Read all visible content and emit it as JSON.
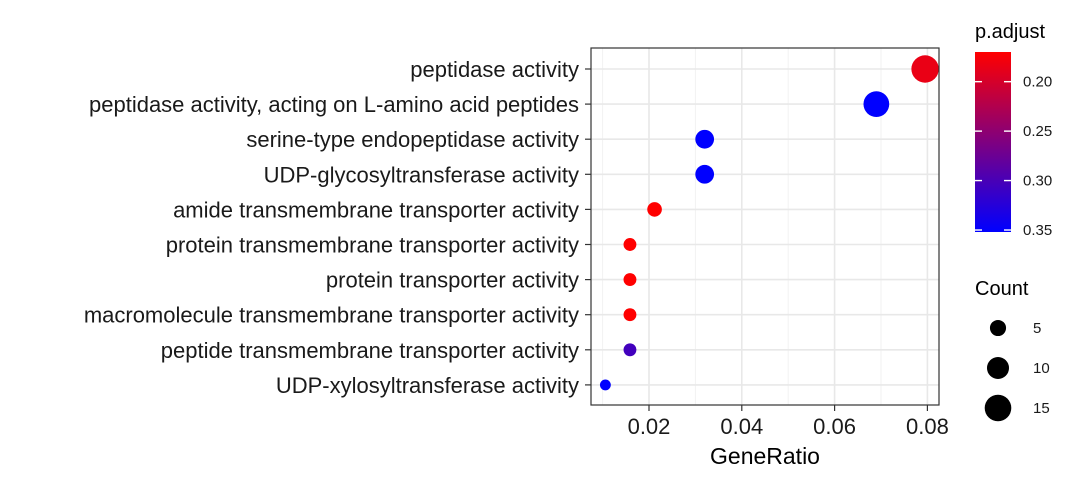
{
  "chart_data": {
    "type": "scatter",
    "xlabel": "GeneRatio",
    "xlim": [
      0.0075,
      0.0825
    ],
    "x_ticks": [
      {
        "value": 0.02,
        "label": "0.02"
      },
      {
        "value": 0.04,
        "label": "0.04"
      },
      {
        "value": 0.06,
        "label": "0.06"
      },
      {
        "value": 0.08,
        "label": "0.08"
      }
    ],
    "categories": [
      "peptidase activity",
      "peptidase activity, acting on L-amino acid peptides",
      "serine-type endopeptidase activity",
      "UDP-glycosyltransferase activity",
      "amide transmembrane transporter activity",
      "protein transmembrane transporter activity",
      "protein transporter activity",
      "macromolecule transmembrane transporter activity",
      "peptide transmembrane transporter activity",
      "UDP-xylosyltransferase activity"
    ],
    "points": [
      {
        "category": "peptidase activity",
        "gene_ratio": 0.0795,
        "count": 16,
        "p_adjust": 0.185
      },
      {
        "category": "peptidase activity, acting on L-amino acid peptides",
        "gene_ratio": 0.069,
        "count": 14,
        "p_adjust": 0.352
      },
      {
        "category": "serine-type endopeptidase activity",
        "gene_ratio": 0.032,
        "count": 7,
        "p_adjust": 0.352
      },
      {
        "category": "UDP-glycosyltransferase activity",
        "gene_ratio": 0.032,
        "count": 7,
        "p_adjust": 0.352
      },
      {
        "category": "amide transmembrane transporter activity",
        "gene_ratio": 0.0212,
        "count": 4,
        "p_adjust": 0.17
      },
      {
        "category": "protein transmembrane transporter activity",
        "gene_ratio": 0.0159,
        "count": 3,
        "p_adjust": 0.17
      },
      {
        "category": "protein transporter activity",
        "gene_ratio": 0.0159,
        "count": 3,
        "p_adjust": 0.17
      },
      {
        "category": "macromolecule transmembrane transporter activity",
        "gene_ratio": 0.0159,
        "count": 3,
        "p_adjust": 0.17
      },
      {
        "category": "peptide transmembrane transporter activity",
        "gene_ratio": 0.0159,
        "count": 3,
        "p_adjust": 0.305
      },
      {
        "category": "UDP-xylosyltransferase activity",
        "gene_ratio": 0.0106,
        "count": 2,
        "p_adjust": 0.352
      }
    ],
    "color_legend": {
      "title": "p.adjust",
      "range": [
        0.17,
        0.352
      ],
      "low_color": "#ff0000",
      "high_color": "#0000ff",
      "ticks": [
        {
          "value": 0.2,
          "label": "0.20"
        },
        {
          "value": 0.25,
          "label": "0.25"
        },
        {
          "value": 0.3,
          "label": "0.30"
        },
        {
          "value": 0.35,
          "label": "0.35"
        }
      ]
    },
    "size_legend": {
      "title": "Count",
      "entries": [
        {
          "value": 5,
          "label": "5"
        },
        {
          "value": 10,
          "label": "10"
        },
        {
          "value": 15,
          "label": "15"
        }
      ]
    },
    "grid": true,
    "legend_position": "right"
  }
}
